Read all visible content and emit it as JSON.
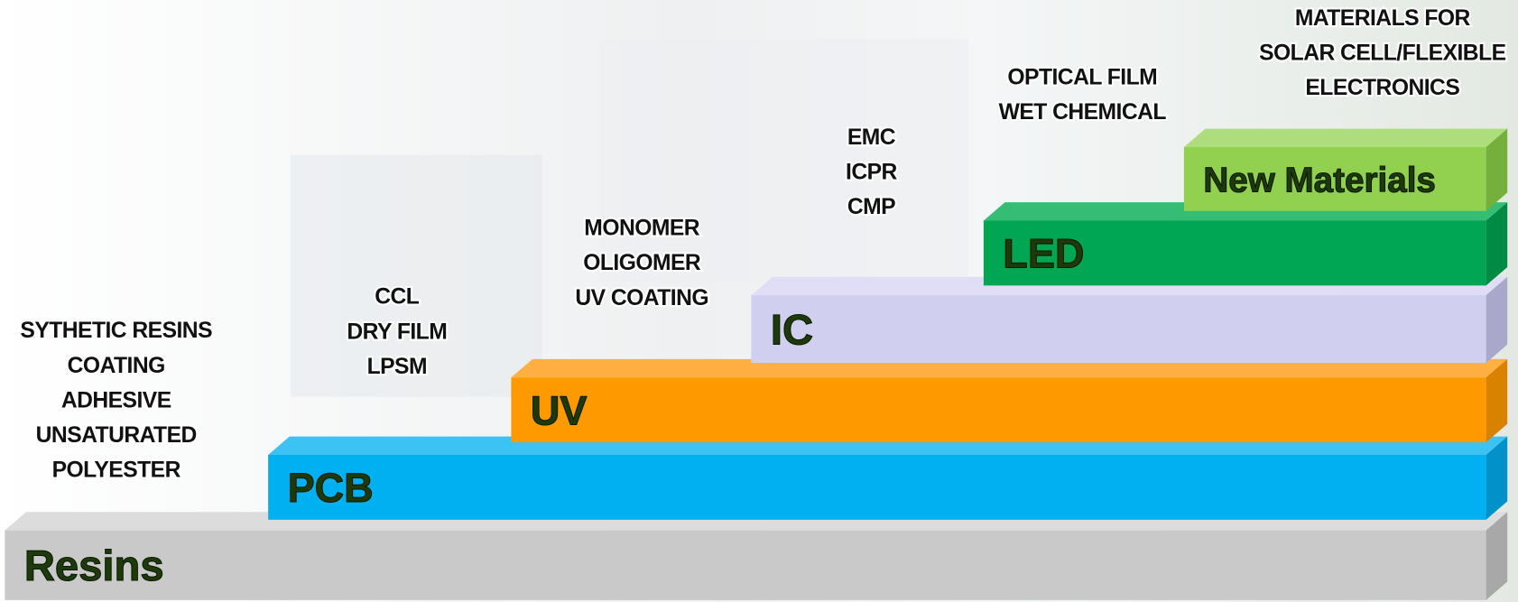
{
  "steps": [
    {
      "label": "Resins",
      "items": [
        "SYTHETIC RESINS",
        "COATING",
        "ADHESIVE",
        "UNSATURATED",
        "POLYESTER"
      ]
    },
    {
      "label": "PCB",
      "items": [
        "CCL",
        "DRY FILM",
        "LPSM"
      ]
    },
    {
      "label": "UV",
      "items": [
        "MONOMER",
        "OLIGOMER",
        "UV COATING"
      ]
    },
    {
      "label": "IC",
      "items": [
        "EMC",
        "ICPR",
        "CMP"
      ]
    },
    {
      "label": "LED",
      "items": [
        "OPTICAL FILM",
        "WET CHEMICAL"
      ]
    },
    {
      "label": "New Materials",
      "items": [
        "MATERIALS  FOR",
        "SOLAR CELL/FLEXIBLE",
        "ELECTRONICS"
      ]
    }
  ]
}
